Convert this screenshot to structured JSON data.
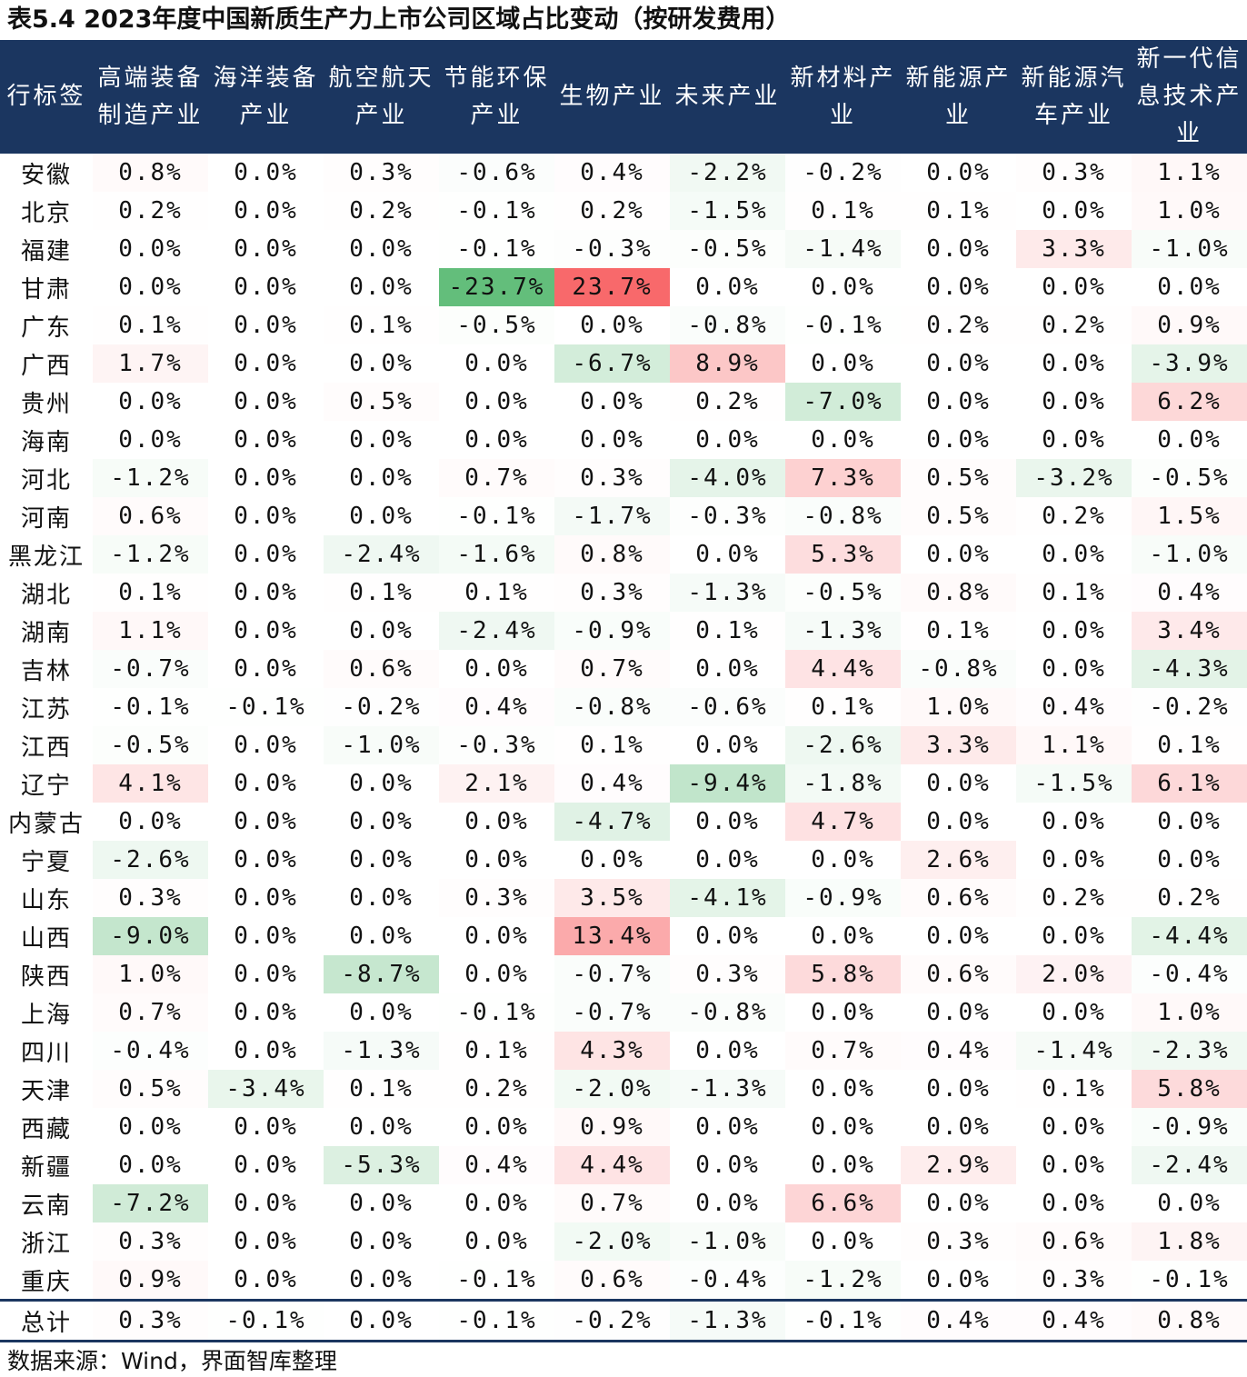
{
  "chart_data": {
    "type": "table",
    "title": "表5.4 2023年度中国新质生产力上市公司区域占比变动（按研发费用）",
    "row_header_label": "行标签",
    "columns": [
      "高端装备制造产业",
      "海洋装备产业",
      "航空航天产业",
      "节能环保产业",
      "生物产业",
      "未来产业",
      "新材料产业",
      "新能源产业",
      "新能源汽车产业",
      "新一代信息技术产业"
    ],
    "rows": [
      {
        "region": "安徽",
        "values": [
          "0.8%",
          "0.0%",
          "0.3%",
          "-0.6%",
          "0.4%",
          "-2.2%",
          "-0.2%",
          "0.0%",
          "0.3%",
          "1.1%"
        ]
      },
      {
        "region": "北京",
        "values": [
          "0.2%",
          "0.0%",
          "0.2%",
          "-0.1%",
          "0.2%",
          "-1.5%",
          "0.1%",
          "0.1%",
          "0.0%",
          "1.0%"
        ]
      },
      {
        "region": "福建",
        "values": [
          "0.0%",
          "0.0%",
          "0.0%",
          "-0.1%",
          "-0.3%",
          "-0.5%",
          "-1.4%",
          "0.0%",
          "3.3%",
          "-1.0%"
        ]
      },
      {
        "region": "甘肃",
        "values": [
          "0.0%",
          "0.0%",
          "0.0%",
          "-23.7%",
          "23.7%",
          "0.0%",
          "0.0%",
          "0.0%",
          "0.0%",
          "0.0%"
        ]
      },
      {
        "region": "广东",
        "values": [
          "0.1%",
          "0.0%",
          "0.1%",
          "-0.5%",
          "0.0%",
          "-0.8%",
          "-0.1%",
          "0.2%",
          "0.2%",
          "0.9%"
        ]
      },
      {
        "region": "广西",
        "values": [
          "1.7%",
          "0.0%",
          "0.0%",
          "0.0%",
          "-6.7%",
          "8.9%",
          "0.0%",
          "0.0%",
          "0.0%",
          "-3.9%"
        ]
      },
      {
        "region": "贵州",
        "values": [
          "0.0%",
          "0.0%",
          "0.5%",
          "0.0%",
          "0.0%",
          "0.2%",
          "-7.0%",
          "0.0%",
          "0.0%",
          "6.2%"
        ]
      },
      {
        "region": "海南",
        "values": [
          "0.0%",
          "0.0%",
          "0.0%",
          "0.0%",
          "0.0%",
          "0.0%",
          "0.0%",
          "0.0%",
          "0.0%",
          "0.0%"
        ]
      },
      {
        "region": "河北",
        "values": [
          "-1.2%",
          "0.0%",
          "0.0%",
          "0.7%",
          "0.3%",
          "-4.0%",
          "7.3%",
          "0.5%",
          "-3.2%",
          "-0.5%"
        ]
      },
      {
        "region": "河南",
        "values": [
          "0.6%",
          "0.0%",
          "0.0%",
          "-0.1%",
          "-1.7%",
          "-0.3%",
          "-0.8%",
          "0.5%",
          "0.2%",
          "1.5%"
        ]
      },
      {
        "region": "黑龙江",
        "values": [
          "-1.2%",
          "0.0%",
          "-2.4%",
          "-1.6%",
          "0.8%",
          "0.0%",
          "5.3%",
          "0.0%",
          "0.0%",
          "-1.0%"
        ]
      },
      {
        "region": "湖北",
        "values": [
          "0.1%",
          "0.0%",
          "0.1%",
          "0.1%",
          "0.3%",
          "-1.3%",
          "-0.5%",
          "0.8%",
          "0.1%",
          "0.4%"
        ]
      },
      {
        "region": "湖南",
        "values": [
          "1.1%",
          "0.0%",
          "0.0%",
          "-2.4%",
          "-0.9%",
          "0.1%",
          "-1.3%",
          "0.1%",
          "0.0%",
          "3.4%"
        ]
      },
      {
        "region": "吉林",
        "values": [
          "-0.7%",
          "0.0%",
          "0.6%",
          "0.0%",
          "0.7%",
          "0.0%",
          "4.4%",
          "-0.8%",
          "0.0%",
          "-4.3%"
        ]
      },
      {
        "region": "江苏",
        "values": [
          "-0.1%",
          "-0.1%",
          "-0.2%",
          "0.4%",
          "-0.8%",
          "-0.6%",
          "0.1%",
          "1.0%",
          "0.4%",
          "-0.2%"
        ]
      },
      {
        "region": "江西",
        "values": [
          "-0.5%",
          "0.0%",
          "-1.0%",
          "-0.3%",
          "0.1%",
          "0.0%",
          "-2.6%",
          "3.3%",
          "1.1%",
          "0.1%"
        ]
      },
      {
        "region": "辽宁",
        "values": [
          "4.1%",
          "0.0%",
          "0.0%",
          "2.1%",
          "0.4%",
          "-9.4%",
          "-1.8%",
          "0.0%",
          "-1.5%",
          "6.1%"
        ]
      },
      {
        "region": "内蒙古",
        "values": [
          "0.0%",
          "0.0%",
          "0.0%",
          "0.0%",
          "-4.7%",
          "0.0%",
          "4.7%",
          "0.0%",
          "0.0%",
          "0.0%"
        ]
      },
      {
        "region": "宁夏",
        "values": [
          "-2.6%",
          "0.0%",
          "0.0%",
          "0.0%",
          "0.0%",
          "0.0%",
          "0.0%",
          "2.6%",
          "0.0%",
          "0.0%"
        ]
      },
      {
        "region": "山东",
        "values": [
          "0.3%",
          "0.0%",
          "0.0%",
          "0.3%",
          "3.5%",
          "-4.1%",
          "-0.9%",
          "0.6%",
          "0.2%",
          "0.2%"
        ]
      },
      {
        "region": "山西",
        "values": [
          "-9.0%",
          "0.0%",
          "0.0%",
          "0.0%",
          "13.4%",
          "0.0%",
          "0.0%",
          "0.0%",
          "0.0%",
          "-4.4%"
        ]
      },
      {
        "region": "陕西",
        "values": [
          "1.0%",
          "0.0%",
          "-8.7%",
          "0.0%",
          "-0.7%",
          "0.3%",
          "5.8%",
          "0.6%",
          "2.0%",
          "-0.4%"
        ]
      },
      {
        "region": "上海",
        "values": [
          "0.7%",
          "0.0%",
          "0.0%",
          "-0.1%",
          "-0.7%",
          "-0.8%",
          "0.0%",
          "0.0%",
          "0.0%",
          "1.0%"
        ]
      },
      {
        "region": "四川",
        "values": [
          "-0.4%",
          "0.0%",
          "-1.3%",
          "0.1%",
          "4.3%",
          "0.0%",
          "0.7%",
          "0.4%",
          "-1.4%",
          "-2.3%"
        ]
      },
      {
        "region": "天津",
        "values": [
          "0.5%",
          "-3.4%",
          "0.1%",
          "0.2%",
          "-2.0%",
          "-1.3%",
          "0.0%",
          "0.0%",
          "0.1%",
          "5.8%"
        ]
      },
      {
        "region": "西藏",
        "values": [
          "0.0%",
          "0.0%",
          "0.0%",
          "0.0%",
          "0.9%",
          "0.0%",
          "0.0%",
          "0.0%",
          "0.0%",
          "-0.9%"
        ]
      },
      {
        "region": "新疆",
        "values": [
          "0.0%",
          "0.0%",
          "-5.3%",
          "0.4%",
          "4.4%",
          "0.0%",
          "0.0%",
          "2.9%",
          "0.0%",
          "-2.4%"
        ]
      },
      {
        "region": "云南",
        "values": [
          "-7.2%",
          "0.0%",
          "0.0%",
          "0.0%",
          "0.7%",
          "0.0%",
          "6.6%",
          "0.0%",
          "0.0%",
          "0.0%"
        ]
      },
      {
        "region": "浙江",
        "values": [
          "0.3%",
          "0.0%",
          "0.0%",
          "0.0%",
          "-2.0%",
          "-1.0%",
          "0.0%",
          "0.3%",
          "0.6%",
          "1.8%"
        ]
      },
      {
        "region": "重庆",
        "values": [
          "0.9%",
          "0.0%",
          "0.0%",
          "-0.1%",
          "0.6%",
          "-0.4%",
          "-1.2%",
          "0.0%",
          "0.3%",
          "-0.1%"
        ]
      },
      {
        "region": "总计",
        "values": [
          "0.3%",
          "-0.1%",
          "0.0%",
          "-0.1%",
          "-0.2%",
          "-1.3%",
          "-0.1%",
          "0.4%",
          "0.4%",
          "0.8%"
        ]
      }
    ],
    "color_scale": {
      "positive": "#f8696b",
      "negative": "#63be7b",
      "neutral": "#ffffff"
    }
  },
  "source_note": "数据来源：Wind，界面智库整理"
}
